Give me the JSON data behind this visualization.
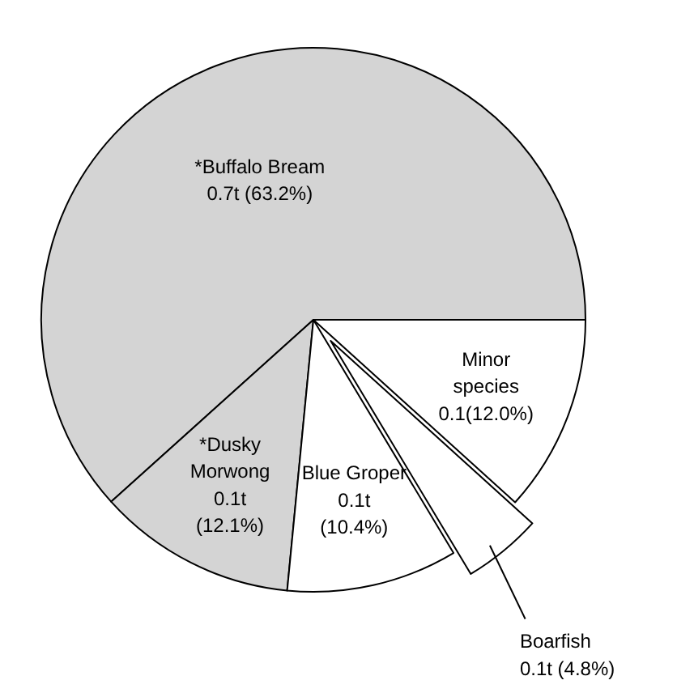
{
  "chart_data": {
    "type": "pie",
    "categories": [
      "*Buffalo Bream",
      "*Dusky Morwong",
      "Blue Groper",
      "Boarfish",
      "Minor species"
    ],
    "values": [
      63.2,
      12.1,
      10.4,
      4.8,
      12.0
    ],
    "colors": [
      "#d4d4d4",
      "#d4d4d4",
      "#ffffff",
      "#ffffff",
      "#ffffff"
    ],
    "value_labels": [
      "0.7t (63.2%)",
      "0.1t (12.1%)",
      "0.1t (10.4%)",
      "0.1t (4.8%)",
      "0.1(12.0%)"
    ]
  }
}
